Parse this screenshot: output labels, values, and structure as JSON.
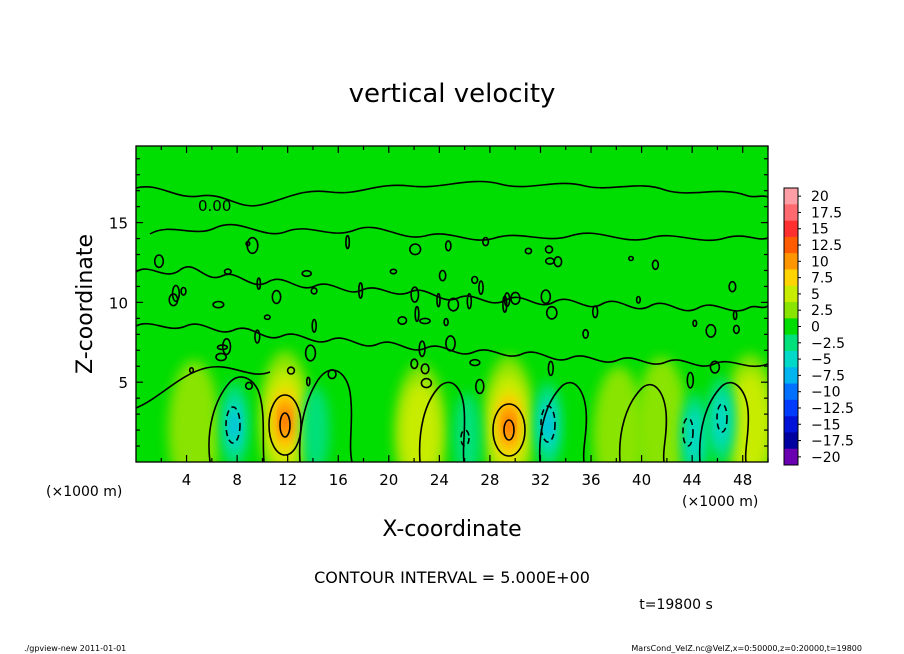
{
  "chart_data": {
    "type": "heatmap",
    "title": "vertical velocity",
    "xlabel": "X-coordinate",
    "ylabel": "Z-coordinate",
    "x_unit_left": "(×1000 m)",
    "x_unit_right": "(×1000 m)",
    "xlim": [
      0,
      50
    ],
    "ylim": [
      0,
      19.8
    ],
    "x_ticks": [
      "4",
      "8",
      "12",
      "16",
      "20",
      "24",
      "28",
      "32",
      "36",
      "40",
      "44",
      "48"
    ],
    "y_ticks": [
      "5",
      "10",
      "15"
    ],
    "contour_label": "0.00",
    "contour_interval_text": "CONTOUR INTERVAL = 5.000E+00",
    "time_text": "t=19800 s",
    "footer_left": "./gpview-new  2011-01-01",
    "footer_right": "MarsCond_VelZ.nc@VelZ,x=0:50000,z=0:20000,t=19800",
    "colorbar": {
      "labels": [
        "20",
        "17.5",
        "15",
        "12.5",
        "10",
        "7.5",
        "5",
        "2.5",
        "0",
        "−2.5",
        "−5",
        "−7.5",
        "−10",
        "−12.5",
        "−15",
        "−17.5",
        "−20"
      ],
      "colors": [
        "#ff9fa5",
        "#ff6a70",
        "#ff2f2f",
        "#ff5b00",
        "#ff9600",
        "#ffd400",
        "#c8ec00",
        "#88e400",
        "#00dd00",
        "#00e07a",
        "#00d9c8",
        "#00b4f0",
        "#0070ff",
        "#003cff",
        "#0012d8",
        "#0000a0",
        "#6a00b0"
      ]
    },
    "updraft_cores": [
      {
        "x": 11.8,
        "z": 2.6,
        "w": 12
      },
      {
        "x": 29.5,
        "z": 2.3,
        "w": 12
      },
      {
        "x": 22.5,
        "z": 1.8,
        "w": 5
      },
      {
        "x": 4.6,
        "z": 2.0,
        "w": 4
      },
      {
        "x": 38.2,
        "z": 1.6,
        "w": 3
      },
      {
        "x": 41.6,
        "z": 2.2,
        "w": 4
      },
      {
        "x": 48.6,
        "z": 2.4,
        "w": 5
      }
    ],
    "downdraft_cores": [
      {
        "x": 7.8,
        "z": 2.3,
        "w": -7
      },
      {
        "x": 14.2,
        "z": 2.0,
        "w": -4
      },
      {
        "x": 26.2,
        "z": 1.6,
        "w": -4
      },
      {
        "x": 32.6,
        "z": 2.3,
        "w": -7
      },
      {
        "x": 44.2,
        "z": 1.6,
        "w": -5
      },
      {
        "x": 46.3,
        "z": 2.6,
        "w": -6
      }
    ]
  }
}
